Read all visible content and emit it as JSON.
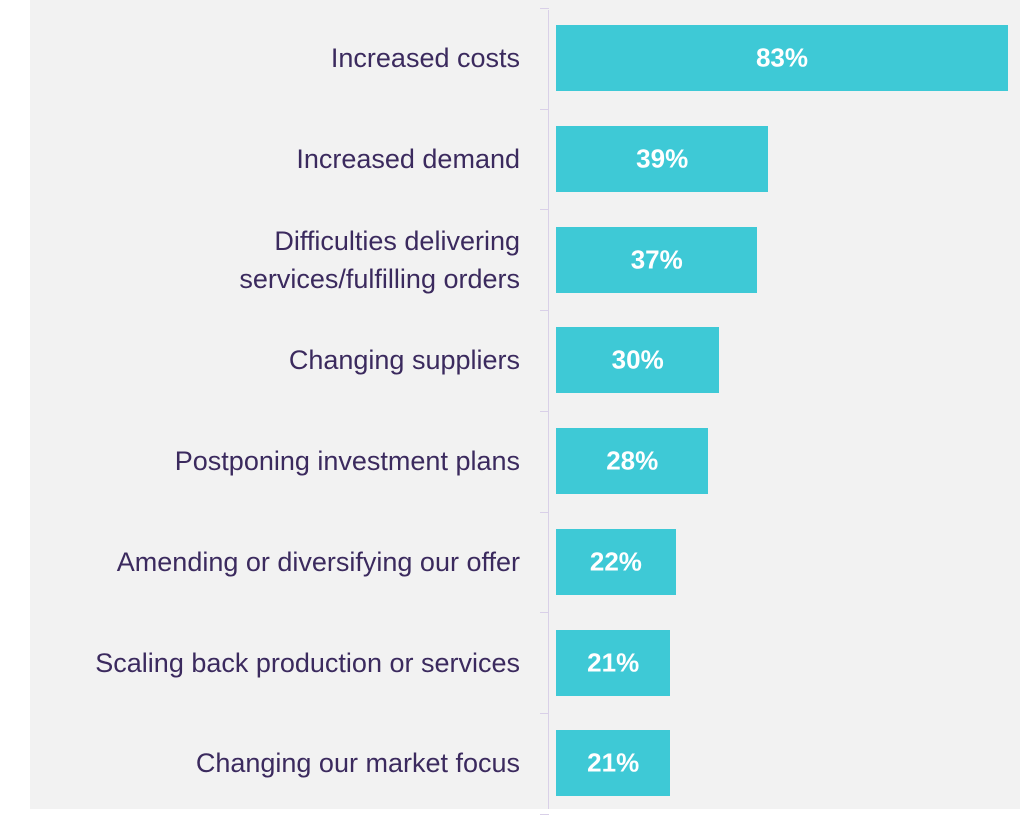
{
  "chart_data": {
    "type": "bar",
    "orientation": "horizontal",
    "categories": [
      "Increased costs",
      "Increased demand",
      "Difficulties delivering\nservices/fulfilling orders",
      "Changing suppliers",
      "Postponing investment plans",
      "Amending or diversifying our offer",
      "Scaling back production or services",
      "Changing our market focus"
    ],
    "values": [
      83,
      39,
      37,
      30,
      28,
      22,
      21,
      21
    ],
    "value_labels": [
      "83%",
      "39%",
      "37%",
      "30%",
      "28%",
      "22%",
      "21%",
      "21%"
    ],
    "color": "#3ec9d6"
  }
}
